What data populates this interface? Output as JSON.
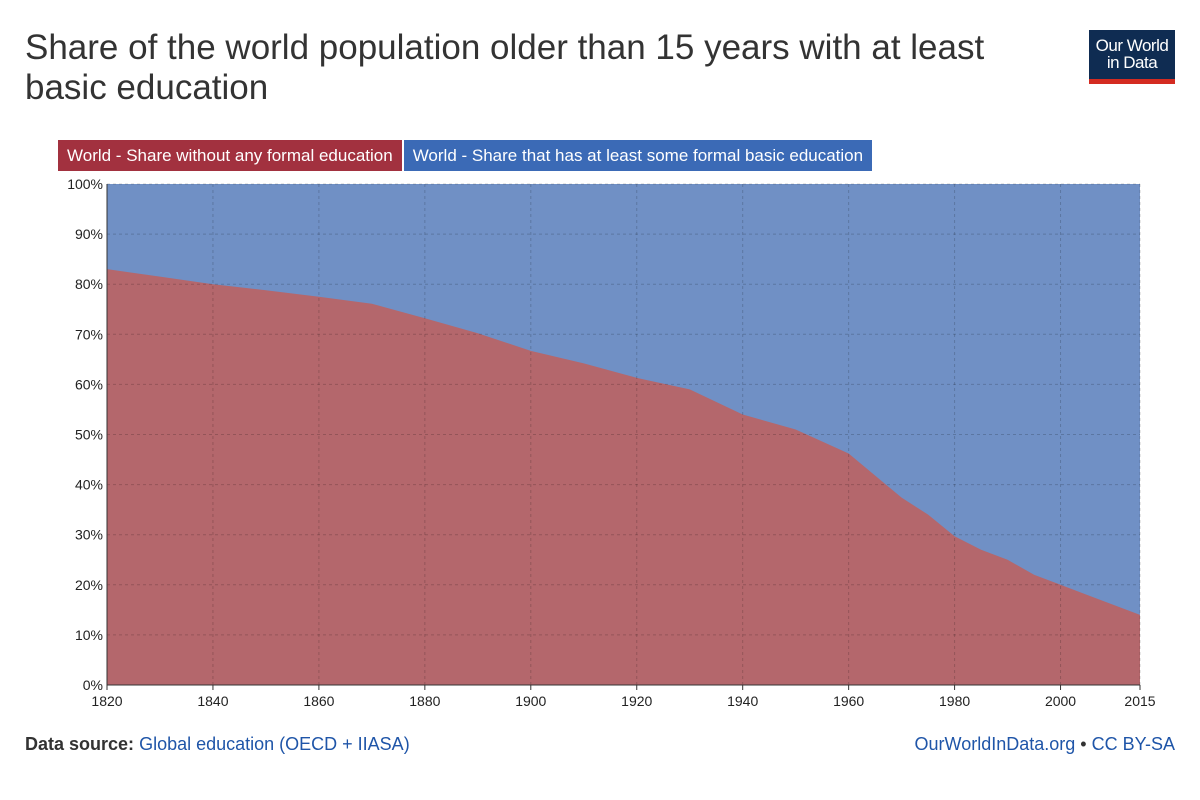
{
  "header": {
    "title": "Share of the world population older than 15 years with at least basic education",
    "logo_line1": "Our World",
    "logo_line2": "in Data"
  },
  "footer": {
    "source_label": "Data source:",
    "source_text": "Global education (OECD + IIASA)",
    "site": "OurWorldInData.org",
    "separator": "•",
    "license": "CC BY-SA"
  },
  "colors": {
    "without_education": "#a2313f",
    "with_education": "#3b6ab6",
    "without_area": "#b4676c",
    "with_area": "#7090c5"
  },
  "chart_data": {
    "type": "area",
    "stacked": true,
    "x": [
      1820,
      1830,
      1840,
      1850,
      1860,
      1870,
      1880,
      1890,
      1900,
      1910,
      1920,
      1930,
      1940,
      1950,
      1960,
      1970,
      1975,
      1980,
      1985,
      1990,
      1995,
      2000,
      2005,
      2010,
      2015
    ],
    "series": [
      {
        "name": "World - Share without any formal education",
        "values": [
          83,
          81.5,
          80,
          78.8,
          77.5,
          76.1,
          73.2,
          70.2,
          66.7,
          64.2,
          61.3,
          59,
          54,
          51,
          46.2,
          37.4,
          34,
          29.7,
          27,
          25,
          22,
          20,
          18,
          16,
          14
        ]
      },
      {
        "name": "World - Share that has at least some formal basic education",
        "values": [
          17,
          18.5,
          20,
          21.2,
          22.5,
          23.9,
          26.8,
          29.8,
          33.3,
          35.8,
          38.7,
          41,
          46,
          49,
          53.8,
          62.6,
          66,
          70.3,
          73,
          75,
          78,
          80,
          82,
          84,
          86
        ]
      }
    ],
    "x_ticks": [
      1820,
      1840,
      1860,
      1880,
      1900,
      1920,
      1940,
      1960,
      1980,
      2000,
      2015
    ],
    "y_ticks": [
      0,
      10,
      20,
      30,
      40,
      50,
      60,
      70,
      80,
      90,
      100
    ],
    "y_tick_labels": [
      "0%",
      "10%",
      "20%",
      "30%",
      "40%",
      "50%",
      "60%",
      "70%",
      "80%",
      "90%",
      "100%"
    ],
    "xlim": [
      1820,
      2015
    ],
    "ylim": [
      0,
      100
    ],
    "grid": true,
    "legend_position": "top-left"
  }
}
